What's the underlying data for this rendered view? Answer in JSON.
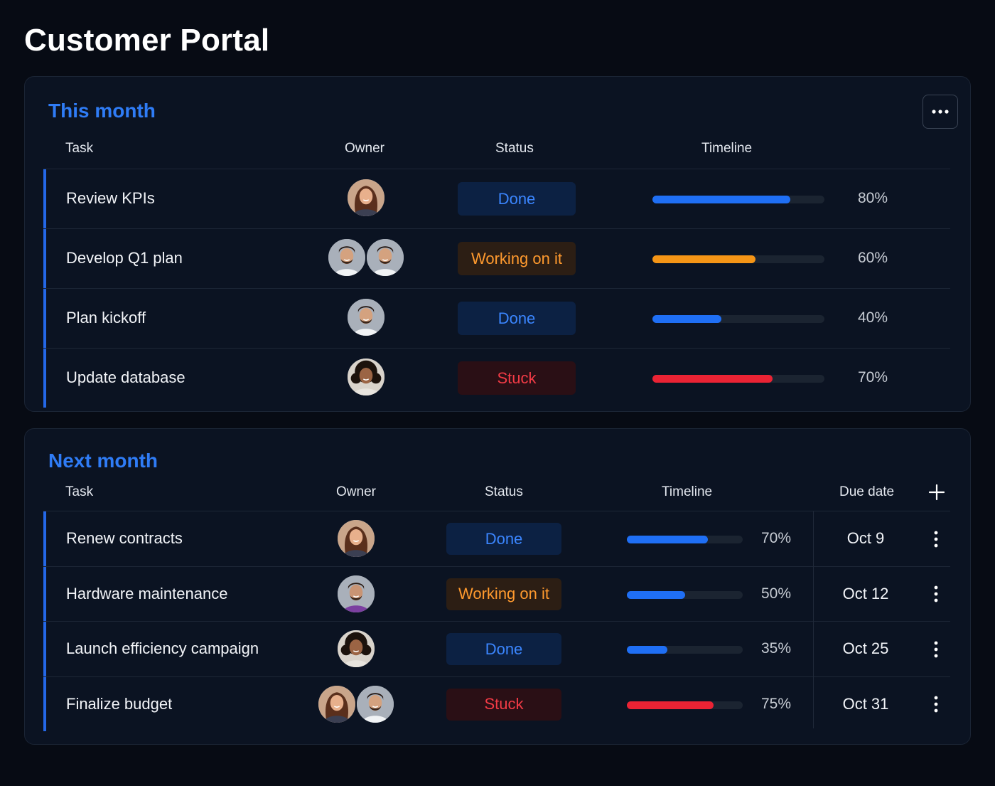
{
  "page": {
    "title": "Customer Portal"
  },
  "icons": {
    "menu": "ellipsis-horizontal-icon",
    "add": "plus-icon",
    "row_menu": "ellipsis-vertical-icon"
  },
  "colors": {
    "accent": "#2f7cf6",
    "done": "#3b86ff",
    "working": "#ff9a2e",
    "stuck": "#f33b46",
    "bar_done": "#1f6ff5",
    "bar_working": "#f59516",
    "bar_stuck": "#ea2334"
  },
  "this_month": {
    "title": "This month",
    "columns": {
      "task": "Task",
      "owner": "Owner",
      "status": "Status",
      "timeline": "Timeline"
    },
    "rows": [
      {
        "task": "Review KPIs",
        "owners": [
          "woman-wavy-hair"
        ],
        "status": "Done",
        "status_kind": "done",
        "progress": 80,
        "progress_label": "80%"
      },
      {
        "task": "Develop Q1 plan",
        "owners": [
          "man-short-hair",
          "man-short-hair"
        ],
        "status": "Working on it",
        "status_kind": "working",
        "progress": 60,
        "progress_label": "60%"
      },
      {
        "task": "Plan kickoff",
        "owners": [
          "man-short-hair"
        ],
        "status": "Done",
        "status_kind": "done",
        "progress": 40,
        "progress_label": "40%"
      },
      {
        "task": "Update database",
        "owners": [
          "woman-curly-hair"
        ],
        "status": "Stuck",
        "status_kind": "stuck",
        "progress": 70,
        "progress_label": "70%"
      }
    ]
  },
  "next_month": {
    "title": "Next month",
    "columns": {
      "task": "Task",
      "owner": "Owner",
      "status": "Status",
      "timeline": "Timeline",
      "due": "Due date"
    },
    "rows": [
      {
        "task": "Renew contracts",
        "owners": [
          "woman-wavy-hair"
        ],
        "status": "Done",
        "status_kind": "done",
        "progress": 70,
        "progress_label": "70%",
        "due": "Oct 9"
      },
      {
        "task": "Hardware maintenance",
        "owners": [
          "man-purple-shirt"
        ],
        "status": "Working on it",
        "status_kind": "working",
        "progress": 50,
        "progress_label": "50%",
        "due": "Oct 12"
      },
      {
        "task": "Launch efficiency campaign",
        "owners": [
          "woman-curly-hair"
        ],
        "status": "Done",
        "status_kind": "done",
        "progress": 35,
        "progress_label": "35%",
        "due": "Oct 25"
      },
      {
        "task": "Finalize budget",
        "owners": [
          "woman-wavy-hair",
          "man-short-hair"
        ],
        "status": "Stuck",
        "status_kind": "stuck",
        "progress": 75,
        "progress_label": "75%",
        "due": "Oct 31"
      }
    ]
  }
}
